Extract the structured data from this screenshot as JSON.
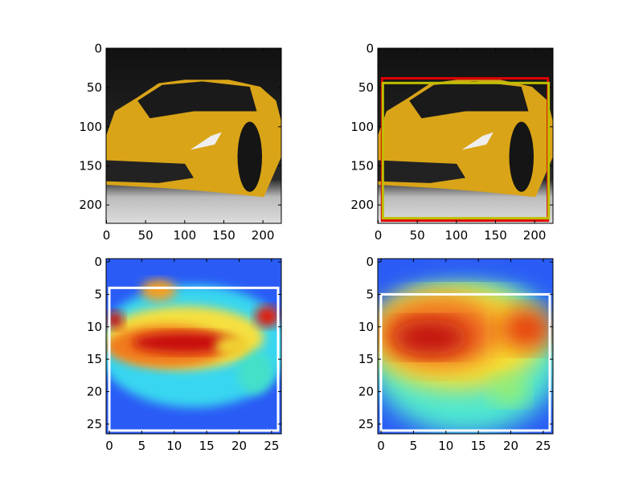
{
  "chart_data": [
    {
      "type": "image",
      "xlim": [
        -0.5,
        223.5
      ],
      "ylim": [
        223.5,
        -0.5
      ],
      "xticks": [
        0,
        50,
        100,
        150,
        200
      ],
      "yticks": [
        0,
        50,
        100,
        150,
        200
      ]
    },
    {
      "type": "image",
      "xlim": [
        -0.5,
        223.5
      ],
      "ylim": [
        223.5,
        -0.5
      ],
      "xticks": [
        0,
        50,
        100,
        150,
        200
      ],
      "yticks": [
        0,
        50,
        100,
        150,
        200
      ],
      "boxes": [
        {
          "color": "#dd0000",
          "x": [
            5,
            217
          ],
          "y": [
            38,
            220
          ]
        },
        {
          "color": "#bfbf00",
          "x": [
            6,
            218
          ],
          "y": [
            44,
            217
          ]
        }
      ]
    },
    {
      "type": "heatmap",
      "xlim": [
        -0.5,
        26.5
      ],
      "ylim": [
        26.5,
        -0.5
      ],
      "xticks": [
        0,
        5,
        10,
        15,
        20,
        25
      ],
      "yticks": [
        0,
        5,
        10,
        15,
        20,
        25
      ],
      "boxes": [
        {
          "color": "#ffffff",
          "x": [
            0,
            26
          ],
          "y": [
            4,
            26
          ]
        }
      ]
    },
    {
      "type": "heatmap",
      "xlim": [
        -0.5,
        26.5
      ],
      "ylim": [
        26.5,
        -0.5
      ],
      "xticks": [
        0,
        5,
        10,
        15,
        20,
        25
      ],
      "yticks": [
        0,
        5,
        10,
        15,
        20,
        25
      ],
      "boxes": [
        {
          "color": "#ffffff",
          "x": [
            0,
            26
          ],
          "y": [
            5,
            26
          ]
        }
      ]
    }
  ]
}
